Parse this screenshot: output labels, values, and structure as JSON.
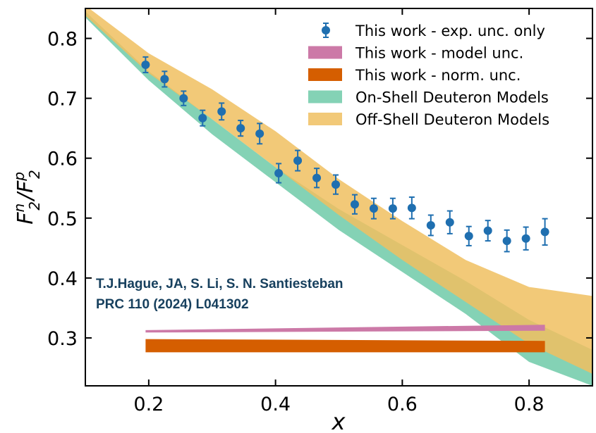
{
  "chart_data": {
    "type": "scatter",
    "xlabel": "x",
    "ylabel": "F",
    "xlim": [
      0.1,
      0.9
    ],
    "ylim": [
      0.22,
      0.85
    ],
    "x_ticks": [
      0.2,
      0.4,
      0.6,
      0.8
    ],
    "x_tick_labels": [
      "0.2",
      "0.4",
      "0.6",
      "0.8"
    ],
    "y_ticks": [
      0.3,
      0.4,
      0.5,
      0.6,
      0.7,
      0.8
    ],
    "y_tick_labels": [
      "0.3",
      "0.4",
      "0.5",
      "0.6",
      "0.7",
      "0.8"
    ],
    "grid": false,
    "legend_position": "top-right",
    "annotations": [
      "T.J.Hague, JA, S. Li, S. N. Santiesteban",
      "PRC 110 (2024) L041302"
    ],
    "colors": {
      "points": "#1f6fb0",
      "model_unc": "#cc79a7",
      "norm_unc": "#d55e00",
      "on_shell": "#6fcaa8",
      "off_shell": "#f0c060",
      "annotation": "#17405e"
    },
    "series": [
      {
        "name": "This work - exp. unc. only",
        "kind": "points",
        "x": [
          0.195,
          0.225,
          0.255,
          0.285,
          0.315,
          0.345,
          0.375,
          0.405,
          0.435,
          0.465,
          0.495,
          0.525,
          0.555,
          0.585,
          0.615,
          0.645,
          0.675,
          0.705,
          0.735,
          0.765,
          0.795,
          0.825
        ],
        "y": [
          0.756,
          0.732,
          0.7,
          0.667,
          0.678,
          0.65,
          0.641,
          0.575,
          0.596,
          0.567,
          0.556,
          0.523,
          0.516,
          0.516,
          0.517,
          0.488,
          0.493,
          0.47,
          0.479,
          0.462,
          0.466,
          0.477
        ],
        "err": [
          0.013,
          0.013,
          0.012,
          0.013,
          0.014,
          0.013,
          0.017,
          0.016,
          0.017,
          0.016,
          0.016,
          0.016,
          0.017,
          0.017,
          0.018,
          0.017,
          0.019,
          0.016,
          0.017,
          0.018,
          0.019,
          0.022
        ]
      },
      {
        "name": "This work - model unc.",
        "kind": "band",
        "x": [
          0.195,
          0.825
        ],
        "lower": [
          0.309,
          0.312
        ],
        "upper": [
          0.313,
          0.322
        ]
      },
      {
        "name": "This work - norm. unc.",
        "kind": "band",
        "x": [
          0.195,
          0.825
        ],
        "lower": [
          0.276,
          0.276
        ],
        "upper": [
          0.298,
          0.295
        ]
      },
      {
        "name": "On-Shell Deuteron Models",
        "kind": "band",
        "x": [
          0.1,
          0.2,
          0.3,
          0.4,
          0.5,
          0.6,
          0.7,
          0.8,
          0.9
        ],
        "lower": [
          0.835,
          0.73,
          0.64,
          0.56,
          0.48,
          0.41,
          0.34,
          0.26,
          0.22
        ],
        "upper": [
          0.845,
          0.745,
          0.665,
          0.585,
          0.515,
          0.455,
          0.395,
          0.33,
          0.28
        ]
      },
      {
        "name": "Off-Shell Deuteron Models",
        "kind": "band",
        "x": [
          0.1,
          0.2,
          0.3,
          0.4,
          0.5,
          0.6,
          0.7,
          0.8,
          0.9
        ],
        "lower": [
          0.838,
          0.742,
          0.665,
          0.585,
          0.505,
          0.43,
          0.36,
          0.29,
          0.24
        ],
        "upper": [
          0.855,
          0.775,
          0.715,
          0.645,
          0.565,
          0.495,
          0.43,
          0.385,
          0.37
        ]
      }
    ]
  }
}
